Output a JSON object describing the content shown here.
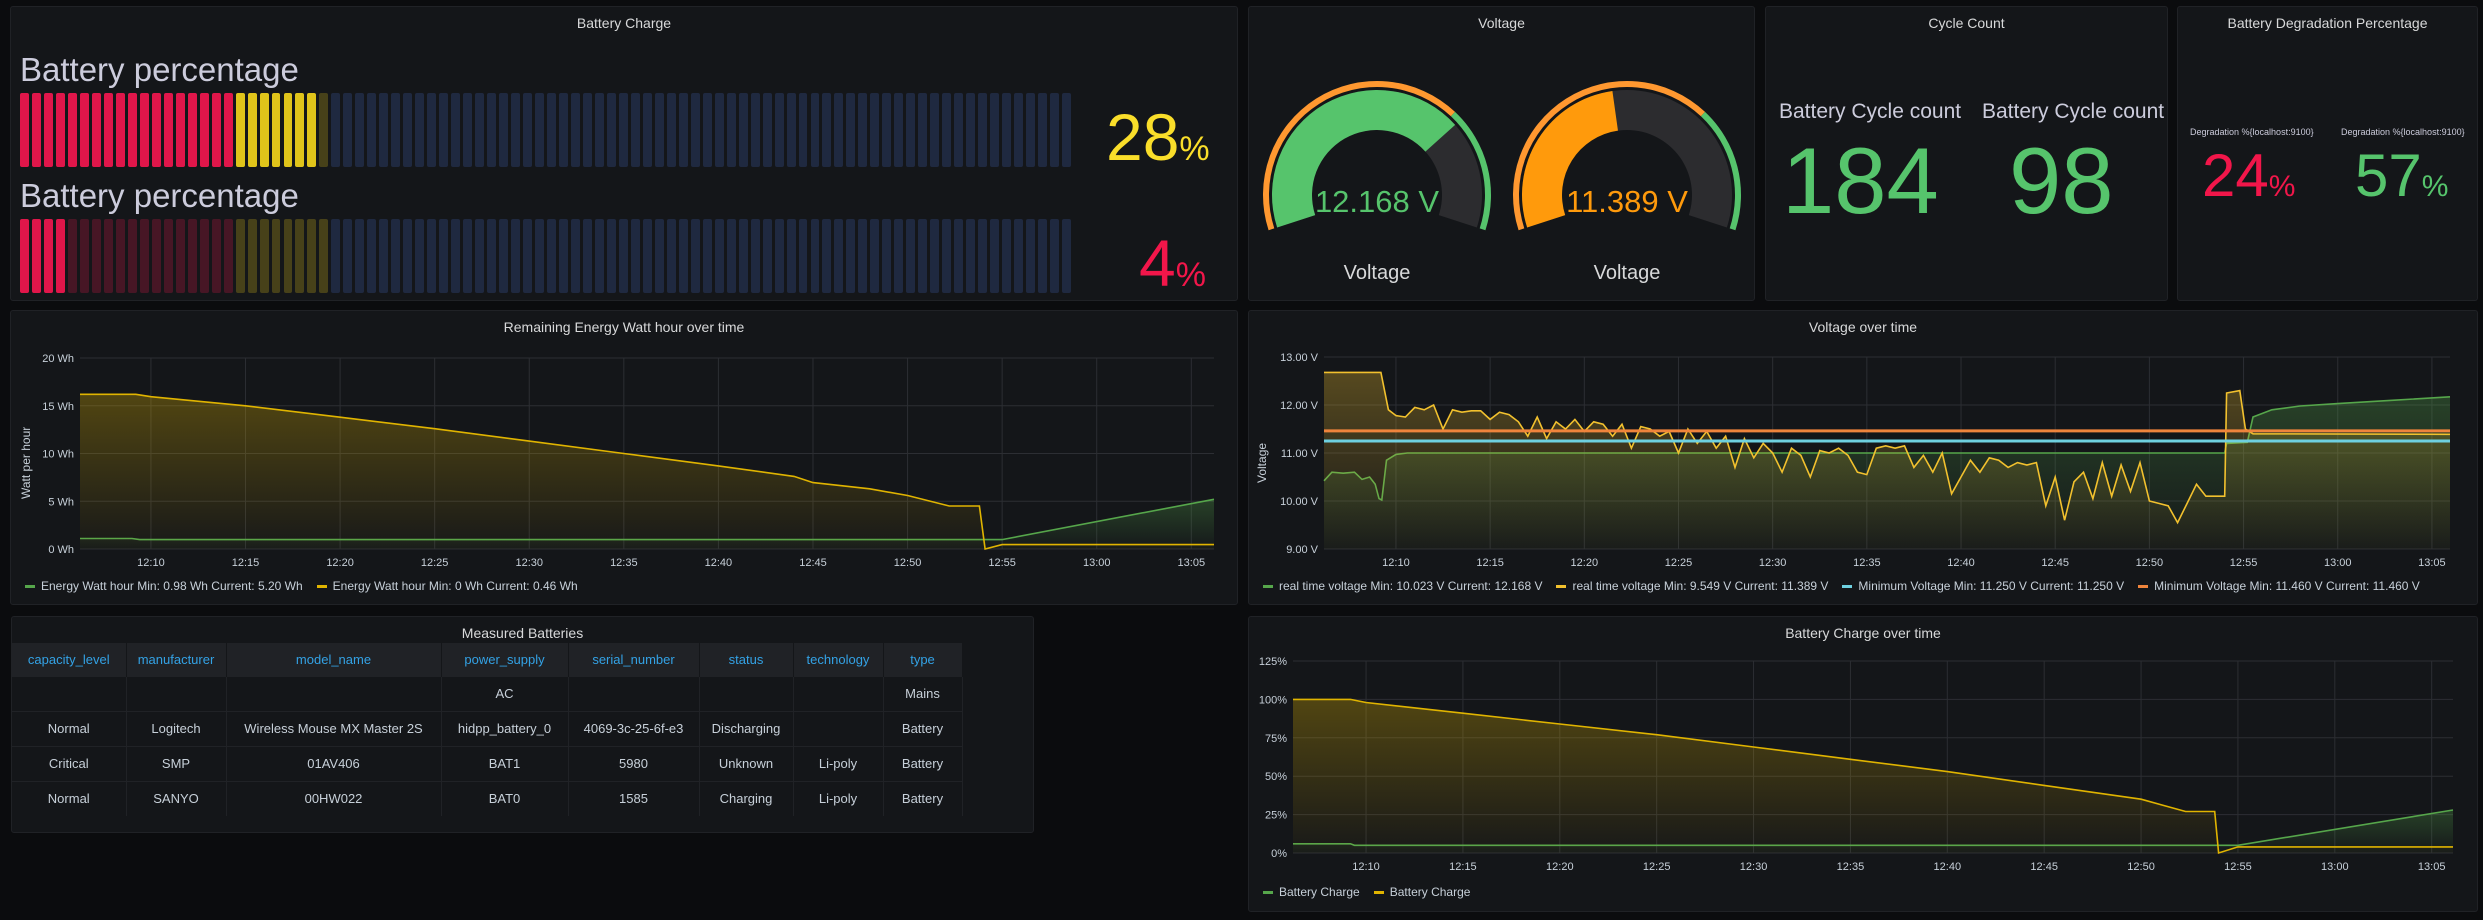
{
  "battery_charge": {
    "title": "Battery Charge",
    "bars": [
      {
        "label": "Battery percentage",
        "value": "28",
        "unit": "%",
        "percent": 28,
        "color": "#fade2a"
      },
      {
        "label": "Battery percentage",
        "value": "4",
        "unit": "%",
        "percent": 4,
        "color": "#f2164a"
      }
    ],
    "thresholds": {
      "red_below": 20,
      "yellow_below": 30
    },
    "colors": {
      "red": "#e0164a",
      "yellow": "#e0c41a",
      "unlit": "#1f2940"
    }
  },
  "voltage": {
    "title": "Voltage",
    "gauges": [
      {
        "label": "Voltage",
        "value": "12.168 V",
        "number": 12.168,
        "color": "#56c46c"
      },
      {
        "label": "Voltage",
        "value": "11.389 V",
        "number": 11.389,
        "color": "#ff9a0c"
      }
    ],
    "min": 10,
    "max": 13,
    "threshold": 12.1
  },
  "cycle_count": {
    "title": "Cycle Count",
    "items": [
      {
        "label": "Battery Cycle count",
        "value": "184"
      },
      {
        "label": "Battery Cycle count",
        "value": "98"
      }
    ]
  },
  "degradation": {
    "title": "Battery Degradation Percentage",
    "items": [
      {
        "label": "Degradation %{localhost:9100}",
        "value": "24",
        "unit": "%",
        "color": "#f2164a"
      },
      {
        "label": "Degradation %{localhost:9100}",
        "value": "57",
        "unit": "%",
        "color": "#56c46c"
      }
    ]
  },
  "table": {
    "title": "Measured Batteries",
    "columns": [
      "capacity_level",
      "manufacturer",
      "model_name",
      "power_supply",
      "serial_number",
      "status",
      "technology",
      "type"
    ],
    "rows": [
      [
        "",
        "",
        "",
        "AC",
        "",
        "",
        "",
        "Mains"
      ],
      [
        "Normal",
        "Logitech",
        "Wireless Mouse MX Master 2S",
        "hidpp_battery_0",
        "4069-3c-25-6f-e3",
        "Discharging",
        "",
        "Battery"
      ],
      [
        "Critical",
        "SMP",
        "01AV406",
        "BAT1",
        "5980",
        "Unknown",
        "Li-poly",
        "Battery"
      ],
      [
        "Normal",
        "SANYO",
        "00HW022",
        "BAT0",
        "1585",
        "Charging",
        "Li-poly",
        "Battery"
      ]
    ]
  },
  "chart_data": [
    {
      "id": "energy",
      "type": "line",
      "title": "Remaining Energy Watt hour over time",
      "ylabel": "Watt per hour",
      "x_unit": "minutes after 12:00",
      "xlim": [
        6.25,
        66.2
      ],
      "ylim": [
        0,
        20
      ],
      "yticks": [
        0,
        5,
        10,
        15,
        20
      ],
      "ytick_labels": [
        "0 Wh",
        "5 Wh",
        "10 Wh",
        "15 Wh",
        "20 Wh"
      ],
      "xticks": [
        10,
        15,
        20,
        25,
        30,
        35,
        40,
        45,
        50,
        55,
        60,
        65
      ],
      "xtick_labels": [
        "12:10",
        "12:15",
        "12:20",
        "12:25",
        "12:30",
        "12:35",
        "12:40",
        "12:45",
        "12:50",
        "12:55",
        "13:00",
        "13:05"
      ],
      "series": [
        {
          "name": "Energy Watt hour",
          "legend": "Energy Watt hour  Min: 0.98 Wh  Current: 5.20 Wh",
          "color": "#56a64b",
          "points": [
            [
              6.25,
              1.1
            ],
            [
              9.0,
              1.1
            ],
            [
              9.4,
              0.98
            ],
            [
              55,
              0.98
            ],
            [
              66.2,
              5.2
            ]
          ]
        },
        {
          "name": "Energy Watt hour",
          "legend": "Energy Watt hour  Min: 0 Wh  Current: 0.46 Wh",
          "color": "#e0b400",
          "points": [
            [
              6.25,
              16.2
            ],
            [
              9.2,
              16.2
            ],
            [
              10,
              15.95
            ],
            [
              15,
              15.0
            ],
            [
              20,
              13.8
            ],
            [
              25,
              12.6
            ],
            [
              30,
              11.3
            ],
            [
              35,
              10.0
            ],
            [
              40,
              8.7
            ],
            [
              44,
              7.6
            ],
            [
              45,
              6.95
            ],
            [
              48,
              6.3
            ],
            [
              50,
              5.6
            ],
            [
              52.2,
              4.5
            ],
            [
              53.8,
              4.5
            ],
            [
              54.1,
              0
            ],
            [
              55,
              0.46
            ],
            [
              66.2,
              0.46
            ]
          ]
        }
      ]
    },
    {
      "id": "voltage",
      "type": "line",
      "title": "Voltage over time",
      "ylabel": "Voltage",
      "x_unit": "minutes after 12:00",
      "xlim": [
        6.18,
        65.96
      ],
      "ylim": [
        9,
        13
      ],
      "yticks": [
        9,
        10,
        11,
        12,
        13
      ],
      "ytick_labels": [
        "9.00 V",
        "10.00 V",
        "11.00 V",
        "12.00 V",
        "13.00 V"
      ],
      "xticks": [
        10,
        15,
        20,
        25,
        30,
        35,
        40,
        45,
        50,
        55,
        60,
        65
      ],
      "xtick_labels": [
        "12:10",
        "12:15",
        "12:20",
        "12:25",
        "12:30",
        "12:35",
        "12:40",
        "12:45",
        "12:50",
        "12:55",
        "13:00",
        "13:05"
      ],
      "series": [
        {
          "name": "real time voltage",
          "legend": "real time voltage  Min: 10.023 V  Current: 12.168 V",
          "color": "#56a64b",
          "points": [
            [
              6.18,
              10.42
            ],
            [
              6.6,
              10.6
            ],
            [
              7.2,
              10.58
            ],
            [
              7.8,
              10.6
            ],
            [
              8.2,
              10.45
            ],
            [
              8.6,
              10.5
            ],
            [
              8.9,
              10.35
            ],
            [
              9.1,
              10.05
            ],
            [
              9.25,
              10.02
            ],
            [
              9.5,
              10.85
            ],
            [
              10,
              10.97
            ],
            [
              10.6,
              11.0
            ],
            [
              54,
              11.0
            ],
            [
              54.1,
              11.2
            ],
            [
              55.2,
              11.22
            ],
            [
              55.5,
              11.75
            ],
            [
              56.5,
              11.9
            ],
            [
              58,
              11.98
            ],
            [
              60,
              12.03
            ],
            [
              63,
              12.1
            ],
            [
              65.96,
              12.17
            ]
          ]
        },
        {
          "name": "real time voltage",
          "legend": "real time voltage  Min: 9.549 V  Current: 11.389 V",
          "color": "#f2c12e",
          "points": [
            [
              6.18,
              12.68
            ],
            [
              9.2,
              12.68
            ],
            [
              9.6,
              11.9
            ],
            [
              10,
              11.78
            ],
            [
              10.5,
              11.75
            ],
            [
              11,
              11.95
            ],
            [
              11.5,
              11.9
            ],
            [
              12,
              12.0
            ],
            [
              12.5,
              11.5
            ],
            [
              13,
              11.9
            ],
            [
              13.5,
              11.85
            ],
            [
              14,
              11.88
            ],
            [
              14.5,
              11.88
            ],
            [
              15,
              11.7
            ],
            [
              15.5,
              11.85
            ],
            [
              16,
              11.8
            ],
            [
              16.5,
              11.65
            ],
            [
              17,
              11.35
            ],
            [
              17.5,
              11.75
            ],
            [
              18,
              11.3
            ],
            [
              18.5,
              11.65
            ],
            [
              19,
              11.5
            ],
            [
              19.5,
              11.7
            ],
            [
              20,
              11.45
            ],
            [
              20.5,
              11.65
            ],
            [
              21,
              11.6
            ],
            [
              21.5,
              11.35
            ],
            [
              22,
              11.6
            ],
            [
              22.5,
              11.1
            ],
            [
              23,
              11.55
            ],
            [
              23.5,
              11.5
            ],
            [
              24,
              11.35
            ],
            [
              24.5,
              11.45
            ],
            [
              25,
              11.0
            ],
            [
              25.5,
              11.5
            ],
            [
              26,
              11.2
            ],
            [
              26.5,
              11.45
            ],
            [
              27,
              11.1
            ],
            [
              27.5,
              11.35
            ],
            [
              28,
              10.7
            ],
            [
              28.5,
              11.3
            ],
            [
              29,
              10.9
            ],
            [
              29.5,
              11.2
            ],
            [
              30,
              11.0
            ],
            [
              30.5,
              10.6
            ],
            [
              31,
              11.1
            ],
            [
              31.5,
              10.95
            ],
            [
              32,
              10.5
            ],
            [
              32.5,
              11.05
            ],
            [
              33,
              11.0
            ],
            [
              33.5,
              11.1
            ],
            [
              34,
              10.95
            ],
            [
              34.5,
              10.6
            ],
            [
              35,
              10.55
            ],
            [
              35.5,
              11.1
            ],
            [
              36,
              11.15
            ],
            [
              36.5,
              11.1
            ],
            [
              37,
              11.15
            ],
            [
              37.5,
              10.7
            ],
            [
              38,
              10.95
            ],
            [
              38.5,
              10.6
            ],
            [
              39,
              11.0
            ],
            [
              39.5,
              10.15
            ],
            [
              40,
              10.5
            ],
            [
              40.5,
              10.85
            ],
            [
              41,
              10.6
            ],
            [
              41.5,
              10.9
            ],
            [
              42,
              10.85
            ],
            [
              42.5,
              10.7
            ],
            [
              43,
              10.8
            ],
            [
              43.5,
              10.75
            ],
            [
              44,
              10.8
            ],
            [
              44.5,
              9.9
            ],
            [
              45,
              10.5
            ],
            [
              45.5,
              9.6
            ],
            [
              46,
              10.4
            ],
            [
              46.5,
              10.6
            ],
            [
              47,
              10.05
            ],
            [
              47.5,
              10.8
            ],
            [
              48,
              10.1
            ],
            [
              48.5,
              10.75
            ],
            [
              49,
              10.2
            ],
            [
              49.5,
              10.8
            ],
            [
              50,
              10.0
            ],
            [
              50.5,
              9.95
            ],
            [
              51,
              9.9
            ],
            [
              51.5,
              9.55
            ],
            [
              52,
              9.95
            ],
            [
              52.5,
              10.35
            ],
            [
              53,
              10.1
            ],
            [
              53.5,
              10.1
            ],
            [
              54,
              10.1
            ],
            [
              54.1,
              12.25
            ],
            [
              54.8,
              12.3
            ],
            [
              55.1,
              11.5
            ],
            [
              55.5,
              11.4
            ],
            [
              65.96,
              11.39
            ]
          ]
        },
        {
          "name": "Minimum Voltage",
          "legend": "Minimum Voltage  Min: 11.250 V  Current: 11.250 V",
          "color": "#6ed0e0",
          "points": [
            [
              6.18,
              11.25
            ],
            [
              65.96,
              11.25
            ]
          ]
        },
        {
          "name": "Minimum Voltage",
          "legend": "Minimum Voltage  Min: 11.460 V  Current: 11.460 V",
          "color": "#ef843c",
          "points": [
            [
              6.18,
              11.46
            ],
            [
              65.96,
              11.46
            ]
          ]
        }
      ]
    },
    {
      "id": "charge",
      "type": "line",
      "title": "Battery Charge over time",
      "ylabel": "",
      "x_unit": "minutes after 12:00",
      "xlim": [
        6.23,
        66.1
      ],
      "ylim": [
        0,
        125
      ],
      "yticks": [
        0,
        25,
        50,
        75,
        100,
        125
      ],
      "ytick_labels": [
        "0%",
        "25%",
        "50%",
        "75%",
        "100%",
        "125%"
      ],
      "xticks": [
        10,
        15,
        20,
        25,
        30,
        35,
        40,
        45,
        50,
        55,
        60,
        65
      ],
      "xtick_labels": [
        "12:10",
        "12:15",
        "12:20",
        "12:25",
        "12:30",
        "12:35",
        "12:40",
        "12:45",
        "12:50",
        "12:55",
        "13:00",
        "13:05"
      ],
      "series": [
        {
          "name": "Battery Charge",
          "legend": "Battery Charge",
          "color": "#56a64b",
          "points": [
            [
              6.23,
              6
            ],
            [
              9.2,
              6
            ],
            [
              9.4,
              5
            ],
            [
              55,
              5
            ],
            [
              66.1,
              28
            ]
          ]
        },
        {
          "name": "Battery Charge",
          "legend": "Battery Charge",
          "color": "#e0b400",
          "points": [
            [
              6.23,
              100
            ],
            [
              9.2,
              100
            ],
            [
              10,
              98
            ],
            [
              15,
              91
            ],
            [
              20,
              84
            ],
            [
              25,
              77
            ],
            [
              30,
              69
            ],
            [
              35,
              61
            ],
            [
              40,
              53
            ],
            [
              45,
              44
            ],
            [
              50,
              35
            ],
            [
              52.3,
              27
            ],
            [
              53.8,
              27
            ],
            [
              54.0,
              0
            ],
            [
              55,
              4
            ],
            [
              66.1,
              4
            ]
          ]
        }
      ]
    }
  ]
}
